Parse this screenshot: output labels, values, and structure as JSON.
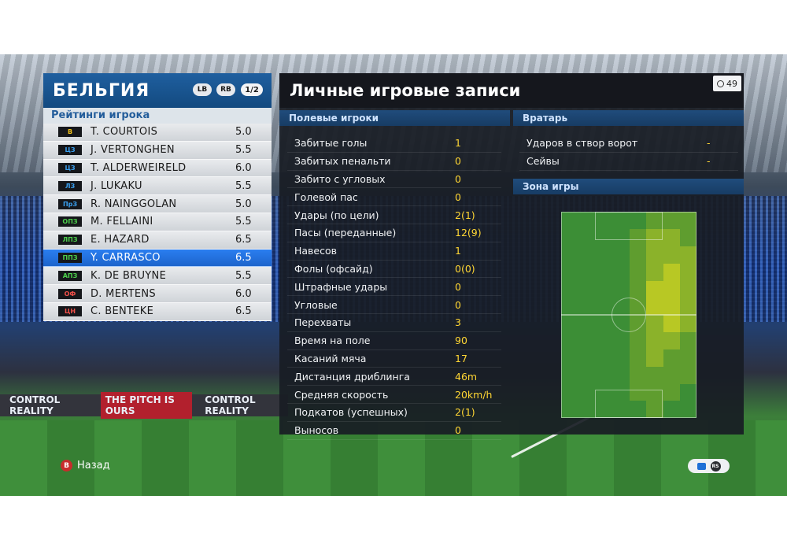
{
  "team": {
    "name": "БЕЛЬГИЯ",
    "lb_label": "LB",
    "rb_label": "RB",
    "page": "1/2",
    "ratings_title": "Рейтинги игрока",
    "players": [
      {
        "pos": "В",
        "pos_color": "#f2c21b",
        "name": "T. COURTOIS",
        "rating": "5.0"
      },
      {
        "pos": "ЦЗ",
        "pos_color": "#3aa0f0",
        "name": "J. VERTONGHEN",
        "rating": "5.5"
      },
      {
        "pos": "ЦЗ",
        "pos_color": "#3aa0f0",
        "name": "T. ALDERWEIRELD",
        "rating": "6.0"
      },
      {
        "pos": "ЛЗ",
        "pos_color": "#3aa0f0",
        "name": "J. LUKAKU",
        "rating": "5.5"
      },
      {
        "pos": "ПрЗ",
        "pos_color": "#3aa0f0",
        "name": "R. NAINGGOLAN",
        "rating": "5.0"
      },
      {
        "pos": "ОПЗ",
        "pos_color": "#4ccf4c",
        "name": "M. FELLAINI",
        "rating": "5.5"
      },
      {
        "pos": "ЛПЗ",
        "pos_color": "#4ccf4c",
        "name": "E. HAZARD",
        "rating": "6.5"
      },
      {
        "pos": "ППЗ",
        "pos_color": "#4ccf4c",
        "name": "Y. CARRASCO",
        "rating": "6.5",
        "selected": true
      },
      {
        "pos": "АПЗ",
        "pos_color": "#4ccf4c",
        "name": "K. DE BRUYNE",
        "rating": "5.5"
      },
      {
        "pos": "ОФ",
        "pos_color": "#f0504a",
        "name": "D. MERTENS",
        "rating": "6.0"
      },
      {
        "pos": "ЦН",
        "pos_color": "#f0504a",
        "name": "C. BENTEKE",
        "rating": "6.5"
      }
    ]
  },
  "records": {
    "title": "Личные игровые записи",
    "timer": "49",
    "field_header": "Полевые игроки",
    "field_stats": [
      {
        "label": "Забитые голы",
        "value": "1"
      },
      {
        "label": "Забитых пенальти",
        "value": "0"
      },
      {
        "label": "Забито с угловых",
        "value": "0"
      },
      {
        "label": "Голевой пас",
        "value": "0"
      },
      {
        "label": "Удары (по цели)",
        "value": "2(1)"
      },
      {
        "label": "Пасы (переданные)",
        "value": "12(9)"
      },
      {
        "label": "Навесов",
        "value": "1"
      },
      {
        "label": "Фолы (офсайд)",
        "value": "0(0)"
      },
      {
        "label": "Штрафные удары",
        "value": "0"
      },
      {
        "label": "Угловые",
        "value": "0"
      },
      {
        "label": "Перехваты",
        "value": "3"
      },
      {
        "label": "Время на поле",
        "value": "90"
      },
      {
        "label": "Касаний мяча",
        "value": "17"
      },
      {
        "label": "Дистанция дриблинга",
        "value": "46m"
      },
      {
        "label": "Средняя скорость",
        "value": "20km/h"
      },
      {
        "label": "Подкатов (успешных)",
        "value": "2(1)"
      },
      {
        "label": "Выносов",
        "value": "0"
      }
    ],
    "gk_header": "Вратарь",
    "gk_stats": [
      {
        "label": "Ударов в створ ворот",
        "value": "-"
      },
      {
        "label": "Сейвы",
        "value": "-"
      }
    ],
    "zone_header": "Зона игры",
    "heatmap": {
      "cols": 8,
      "rows": 12,
      "intensity": [
        [
          0,
          0,
          0,
          0,
          0,
          1,
          1,
          1
        ],
        [
          0,
          0,
          0,
          0,
          1,
          2,
          2,
          1
        ],
        [
          0,
          0,
          0,
          0,
          1,
          2,
          2,
          2
        ],
        [
          0,
          0,
          0,
          0,
          1,
          2,
          3,
          2
        ],
        [
          0,
          0,
          0,
          0,
          1,
          3,
          3,
          2
        ],
        [
          0,
          0,
          0,
          0,
          1,
          3,
          3,
          2
        ],
        [
          0,
          0,
          0,
          0,
          1,
          2,
          3,
          2
        ],
        [
          0,
          0,
          0,
          0,
          1,
          2,
          2,
          1
        ],
        [
          0,
          0,
          0,
          0,
          1,
          2,
          1,
          1
        ],
        [
          0,
          0,
          0,
          0,
          1,
          1,
          1,
          1
        ],
        [
          0,
          0,
          0,
          0,
          1,
          1,
          1,
          0
        ],
        [
          0,
          0,
          0,
          0,
          0,
          1,
          0,
          0
        ]
      ],
      "palette": [
        "#3c8e36",
        "#5f9d2f",
        "#8bb22a",
        "#b8c824"
      ]
    }
  },
  "footer": {
    "back_button": "B",
    "back_label": "Назад",
    "rs_label": "RS"
  },
  "stadium": {
    "boards": [
      "CONTROL REALITY",
      "THE PITCH IS OURS",
      "CONTROL REALITY"
    ]
  }
}
